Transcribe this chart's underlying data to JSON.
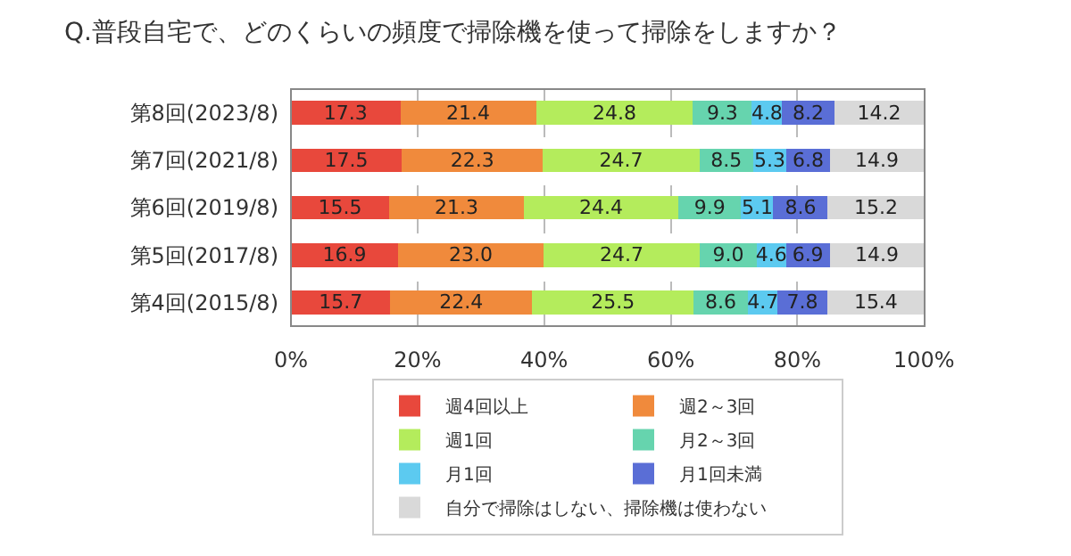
{
  "chart_data": {
    "type": "bar",
    "orientation": "horizontal",
    "stacked": true,
    "title": "Q.普段自宅で、どのくらいの頻度で掃除機を使って掃除をしますか？",
    "categories": [
      "第8回(2023/8)",
      "第7回(2021/8)",
      "第6回(2019/8)",
      "第5回(2017/8)",
      "第4回(2015/8)"
    ],
    "series": [
      {
        "name": "週4回以上",
        "color": "#e8483c",
        "values": [
          17.3,
          17.5,
          15.5,
          16.9,
          15.7
        ]
      },
      {
        "name": "週2～3回",
        "color": "#f08a3c",
        "values": [
          21.4,
          22.3,
          21.3,
          23.0,
          22.4
        ],
        "value_labels": [
          "21.4",
          "22.3",
          "21.3",
          "23.0",
          "22.4"
        ]
      },
      {
        "name": "週1回",
        "color": "#b4ec5c",
        "values": [
          24.8,
          24.7,
          24.4,
          24.7,
          25.5
        ]
      },
      {
        "name": "月2～3回",
        "color": "#66d4ae",
        "values": [
          9.3,
          8.5,
          9.9,
          9.0,
          8.6
        ],
        "value_labels": [
          "9.3",
          "8.5",
          "9.9",
          "9.0",
          "8.6"
        ]
      },
      {
        "name": "月1回",
        "color": "#5ccaf0",
        "values": [
          4.8,
          5.3,
          5.1,
          4.6,
          4.7
        ]
      },
      {
        "name": "月1回未満",
        "color": "#5a6ed6",
        "values": [
          8.2,
          6.8,
          8.6,
          6.9,
          7.8
        ]
      },
      {
        "name": "自分で掃除はしない、掃除機は使わない",
        "color": "#d9d9d9",
        "values": [
          14.2,
          14.9,
          15.2,
          14.9,
          15.4
        ]
      }
    ],
    "xlim": [
      0,
      100.1
    ],
    "xticks": [
      {
        "value": 0,
        "label": "0%"
      },
      {
        "value": 20,
        "label": "20%"
      },
      {
        "value": 40,
        "label": "40%"
      },
      {
        "value": 60,
        "label": "60%"
      },
      {
        "value": 80,
        "label": "80%"
      },
      {
        "value": 100,
        "label": "100%"
      }
    ],
    "grid": "x",
    "legend": "bottom",
    "data_labels": true
  }
}
